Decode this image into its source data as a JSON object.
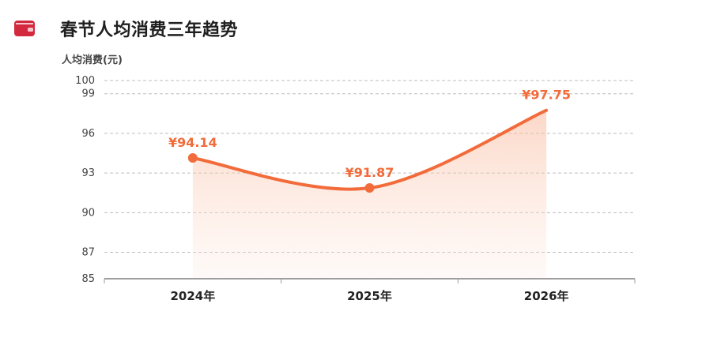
{
  "header": {
    "title": "春节人均消费三年趋势",
    "icon": "wallet-icon",
    "icon_color": "#d42a3f"
  },
  "chart_data": {
    "type": "area",
    "title": "春节人均消费三年趋势",
    "ylabel": "人均消费(元)",
    "xlabel": "",
    "categories": [
      "2024年",
      "2025年",
      "2026年"
    ],
    "series": [
      {
        "values": [
          94.14,
          91.87,
          97.75
        ],
        "data_labels": [
          "¥94.14",
          "¥91.87",
          "¥97.75"
        ],
        "color": "#f26b3a"
      }
    ],
    "ylim": [
      85,
      100
    ],
    "yticks": [
      85,
      87,
      90,
      93,
      96,
      99,
      100
    ],
    "grid": true,
    "markers_on": [
      0,
      1
    ],
    "smooth": true
  }
}
